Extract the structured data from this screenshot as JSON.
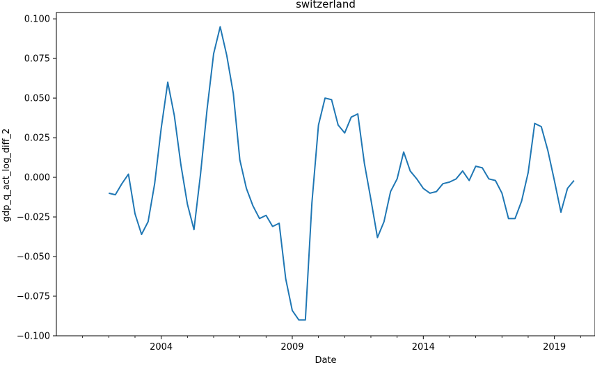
{
  "chart_data": {
    "type": "line",
    "title": "switzerland",
    "xlabel": "Date",
    "ylabel": "gdp_q_act_log_diff_2",
    "xlim": [
      2000.0,
      2020.55
    ],
    "ylim": [
      -0.1,
      0.104
    ],
    "x_ticks": [
      2004,
      2009,
      2014,
      2019
    ],
    "x_tick_labels": [
      "2004",
      "2009",
      "2014",
      "2019"
    ],
    "x_minor_ticks": [
      2001,
      2002,
      2003,
      2005,
      2006,
      2007,
      2008,
      2010,
      2011,
      2012,
      2013,
      2015,
      2016,
      2017,
      2018,
      2020
    ],
    "y_ticks": [
      -0.1,
      -0.075,
      -0.05,
      -0.025,
      0.0,
      0.025,
      0.05,
      0.075,
      0.1
    ],
    "y_tick_labels": [
      "−0.100",
      "−0.075",
      "−0.050",
      "−0.025",
      "0.000",
      "0.025",
      "0.050",
      "0.075",
      "0.100"
    ],
    "grid": false,
    "line_color": "#1f77b4",
    "series": [
      {
        "x": [
          2002.0,
          2002.25,
          2002.5,
          2002.75,
          2003.0,
          2003.25,
          2003.5,
          2003.75,
          2004.0,
          2004.25,
          2004.5,
          2004.75,
          2005.0,
          2005.25,
          2005.5,
          2005.75,
          2006.0,
          2006.25,
          2006.5,
          2006.75,
          2007.0,
          2007.25,
          2007.5,
          2007.75,
          2008.0,
          2008.25,
          2008.5,
          2008.75,
          2009.0,
          2009.25,
          2009.5,
          2009.75,
          2010.0,
          2010.25,
          2010.5,
          2010.75,
          2011.0,
          2011.25,
          2011.5,
          2011.75,
          2012.0,
          2012.25,
          2012.5,
          2012.75,
          2013.0,
          2013.25,
          2013.5,
          2013.75,
          2014.0,
          2014.25,
          2014.5,
          2014.75,
          2015.0,
          2015.25,
          2015.5,
          2015.75,
          2016.0,
          2016.25,
          2016.5,
          2016.75,
          2017.0,
          2017.25,
          2017.5,
          2017.75,
          2018.0,
          2018.25,
          2018.5,
          2018.75,
          2019.0,
          2019.25,
          2019.5,
          2019.75
        ],
        "values": [
          -0.01,
          -0.011,
          -0.004,
          0.002,
          -0.023,
          -0.036,
          -0.028,
          -0.004,
          0.031,
          0.06,
          0.039,
          0.008,
          -0.017,
          -0.033,
          0.002,
          0.043,
          0.078,
          0.095,
          0.077,
          0.053,
          0.011,
          -0.007,
          -0.018,
          -0.026,
          -0.024,
          -0.031,
          -0.029,
          -0.064,
          -0.084,
          -0.09,
          -0.09,
          -0.016,
          0.033,
          0.05,
          0.049,
          0.033,
          0.028,
          0.038,
          0.04,
          0.009,
          -0.014,
          -0.038,
          -0.028,
          -0.009,
          -0.001,
          0.016,
          0.004,
          -0.001,
          -0.007,
          -0.01,
          -0.009,
          -0.004,
          -0.003,
          -0.001,
          0.004,
          -0.002,
          0.007,
          0.006,
          -0.001,
          -0.002,
          -0.01,
          -0.026,
          -0.026,
          -0.015,
          0.003,
          0.034,
          0.032,
          0.017,
          -0.002,
          -0.022,
          -0.007,
          -0.002
        ]
      }
    ]
  }
}
